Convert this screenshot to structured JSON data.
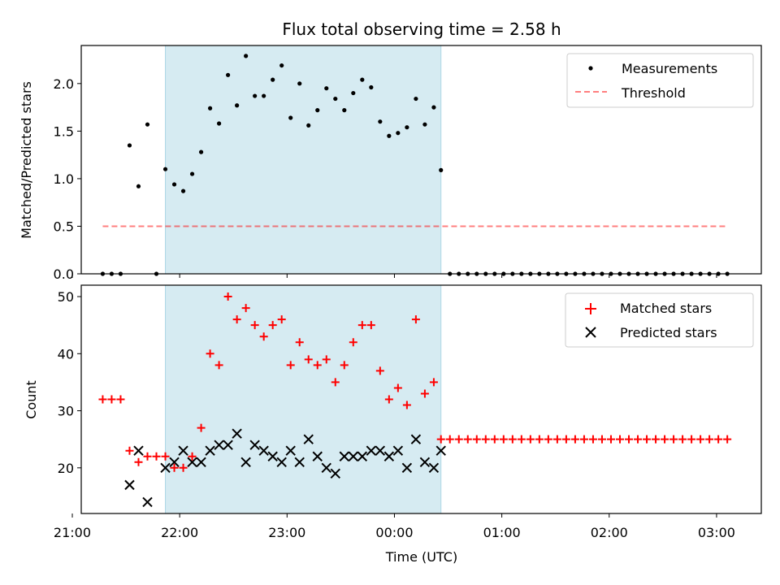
{
  "title": "Flux total observing time = 2.58 h",
  "colors": {
    "span": "#add8e6",
    "measurement": "#000000",
    "threshold": "#ff0000",
    "matched": "#ff0000",
    "predicted": "#000000"
  },
  "chart_data": [
    {
      "type": "scatter",
      "ylabel": "Matched/Predicted stars",
      "xlim": [
        "21:05",
        "27:25"
      ],
      "ylim": [
        0,
        2.4
      ],
      "yticks": [
        0.0,
        0.5,
        1.0,
        1.5,
        2.0
      ],
      "ytick_labels": [
        "0.0",
        "0.5",
        "1.0",
        "1.5",
        "2.0"
      ],
      "legend": {
        "position": "top-right",
        "labels": [
          "Measurements",
          "Threshold"
        ]
      },
      "shaded_span": [
        "21:52",
        "00:26"
      ],
      "threshold": {
        "value": 0.5,
        "from": "21:17",
        "to": "03:05"
      },
      "series": [
        {
          "name": "Measurements",
          "marker": "dot",
          "x": [
            "21:17",
            "21:22",
            "21:27",
            "21:32",
            "21:37",
            "21:42",
            "21:47",
            "21:52",
            "21:57",
            "22:02",
            "22:07",
            "22:12",
            "22:17",
            "22:22",
            "22:27",
            "22:32",
            "22:37",
            "22:42",
            "22:47",
            "22:52",
            "22:57",
            "23:02",
            "23:07",
            "23:12",
            "23:17",
            "23:22",
            "23:27",
            "23:32",
            "23:37",
            "23:42",
            "23:47",
            "23:52",
            "23:57",
            "00:02",
            "00:07",
            "00:12",
            "00:17",
            "00:22",
            "00:26",
            "00:31",
            "00:36",
            "00:41",
            "00:46",
            "00:51",
            "00:56",
            "01:01",
            "01:06",
            "01:11",
            "01:16",
            "01:21",
            "01:26",
            "01:31",
            "01:36",
            "01:41",
            "01:46",
            "01:51",
            "01:56",
            "02:01",
            "02:06",
            "02:11",
            "02:16",
            "02:21",
            "02:26",
            "02:31",
            "02:36",
            "02:41",
            "02:46",
            "02:51",
            "02:56",
            "03:01",
            "03:06"
          ],
          "y": [
            0,
            0,
            0,
            1.35,
            0.92,
            1.57,
            0,
            1.1,
            0.94,
            0.87,
            1.05,
            1.28,
            1.74,
            1.58,
            2.09,
            1.77,
            2.29,
            1.87,
            1.87,
            2.04,
            2.19,
            1.64,
            2.0,
            1.56,
            1.72,
            1.95,
            1.84,
            1.72,
            1.9,
            2.04,
            1.96,
            1.6,
            1.45,
            1.48,
            1.54,
            1.84,
            1.57,
            1.75,
            1.09,
            0,
            0,
            0,
            0,
            0,
            0,
            0,
            0,
            0,
            0,
            0,
            0,
            0,
            0,
            0,
            0,
            0,
            0,
            0,
            0,
            0,
            0,
            0,
            0,
            0,
            0,
            0,
            0,
            0,
            0,
            0,
            0
          ]
        }
      ]
    },
    {
      "type": "scatter",
      "xlabel": "Time (UTC)",
      "ylabel": "Count",
      "xlim": [
        "21:05",
        "27:25"
      ],
      "xticks": [
        "21:00",
        "22:00",
        "23:00",
        "00:00",
        "01:00",
        "02:00",
        "03:00"
      ],
      "ylim": [
        12,
        52
      ],
      "yticks": [
        20,
        30,
        40,
        50
      ],
      "legend": {
        "position": "top-right",
        "labels": [
          "Matched stars",
          "Predicted stars"
        ]
      },
      "shaded_span": [
        "21:52",
        "00:26"
      ],
      "series": [
        {
          "name": "Matched stars",
          "marker": "plus",
          "x": [
            "21:17",
            "21:22",
            "21:27",
            "21:32",
            "21:37",
            "21:42",
            "21:47",
            "21:52",
            "21:57",
            "22:02",
            "22:07",
            "22:12",
            "22:17",
            "22:22",
            "22:27",
            "22:32",
            "22:37",
            "22:42",
            "22:47",
            "22:52",
            "22:57",
            "23:02",
            "23:07",
            "23:12",
            "23:17",
            "23:22",
            "23:27",
            "23:32",
            "23:37",
            "23:42",
            "23:47",
            "23:52",
            "23:57",
            "00:02",
            "00:07",
            "00:12",
            "00:17",
            "00:22",
            "00:26",
            "00:31",
            "00:36",
            "00:41",
            "00:46",
            "00:51",
            "00:56",
            "01:01",
            "01:06",
            "01:11",
            "01:16",
            "01:21",
            "01:26",
            "01:31",
            "01:36",
            "01:41",
            "01:46",
            "01:51",
            "01:56",
            "02:01",
            "02:06",
            "02:11",
            "02:16",
            "02:21",
            "02:26",
            "02:31",
            "02:36",
            "02:41",
            "02:46",
            "02:51",
            "02:56",
            "03:01",
            "03:06",
            "21:32",
            "21:37",
            "21:42",
            "21:47",
            "21:52",
            "21:57",
            "22:02",
            "22:07",
            "22:12"
          ],
          "y": [
            32,
            32,
            32,
            23,
            21,
            22,
            22,
            22,
            20,
            20,
            22,
            27,
            40,
            38,
            50,
            46,
            48,
            45,
            43,
            45,
            46,
            38,
            42,
            39,
            38,
            39,
            35,
            38,
            42,
            45,
            45,
            37,
            32,
            34,
            31,
            46,
            33,
            35,
            25,
            25,
            25,
            25,
            25,
            25,
            25,
            25,
            25,
            25,
            25,
            25,
            25,
            25,
            25,
            25,
            25,
            25,
            25,
            25,
            25,
            25,
            25,
            25,
            25,
            25,
            25,
            25,
            25,
            25,
            25,
            25,
            25,
            null,
            null,
            null,
            null,
            null,
            null,
            null,
            null,
            null
          ]
        },
        {
          "name": "Predicted stars",
          "marker": "x",
          "x": [
            "21:32",
            "21:37",
            "21:42",
            "21:52",
            "21:57",
            "22:02",
            "22:07",
            "22:12",
            "22:17",
            "22:22",
            "22:27",
            "22:32",
            "22:37",
            "22:42",
            "22:47",
            "22:52",
            "22:57",
            "23:02",
            "23:07",
            "23:12",
            "23:17",
            "23:22",
            "23:27",
            "23:32",
            "23:37",
            "23:42",
            "23:47",
            "23:52",
            "23:57",
            "00:02",
            "00:07",
            "00:12",
            "00:17",
            "00:22",
            "00:26"
          ],
          "y": [
            17,
            23,
            14,
            20,
            21,
            23,
            21,
            21,
            23,
            24,
            24,
            26,
            21,
            24,
            23,
            22,
            21,
            23,
            21,
            25,
            22,
            20,
            19,
            22,
            22,
            22,
            23,
            23,
            22,
            23,
            20,
            25,
            21,
            20,
            23
          ]
        }
      ]
    }
  ]
}
